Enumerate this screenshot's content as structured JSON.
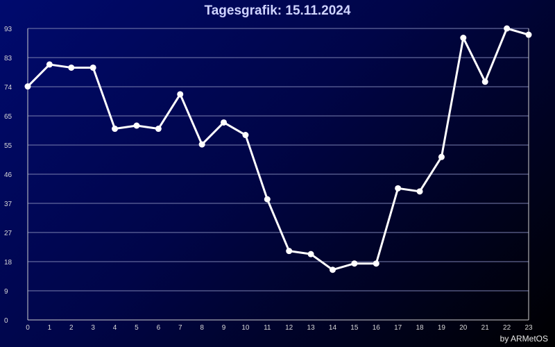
{
  "credit": "by ARMetOS",
  "chart_data": {
    "type": "line",
    "title": "Tagesgrafik: 15.11.2024",
    "xlabel": "",
    "ylabel": "",
    "x": [
      0,
      1,
      2,
      3,
      4,
      5,
      6,
      7,
      8,
      9,
      10,
      11,
      12,
      13,
      14,
      15,
      16,
      17,
      18,
      19,
      20,
      21,
      22,
      23
    ],
    "values": [
      74.5,
      81.5,
      80.5,
      80.5,
      61,
      62,
      61,
      72,
      56,
      63,
      59,
      38.5,
      22,
      21,
      16,
      18,
      18,
      42,
      41,
      52,
      90,
      76,
      93,
      91
    ],
    "xlim": [
      0,
      23
    ],
    "ylim": [
      0,
      93
    ],
    "y_ticks": [
      "0",
      "9",
      "18",
      "27",
      "37",
      "46",
      "55",
      "65",
      "74",
      "83",
      "93"
    ],
    "x_ticks": [
      "0",
      "1",
      "2",
      "3",
      "4",
      "5",
      "6",
      "7",
      "8",
      "9",
      "10",
      "11",
      "12",
      "13",
      "14",
      "15",
      "16",
      "17",
      "18",
      "19",
      "20",
      "21",
      "22",
      "23"
    ],
    "grid": true,
    "colors": {
      "line": "#ffffff",
      "grid": "#7a7fb0",
      "axis": "#d0d0d0"
    }
  }
}
